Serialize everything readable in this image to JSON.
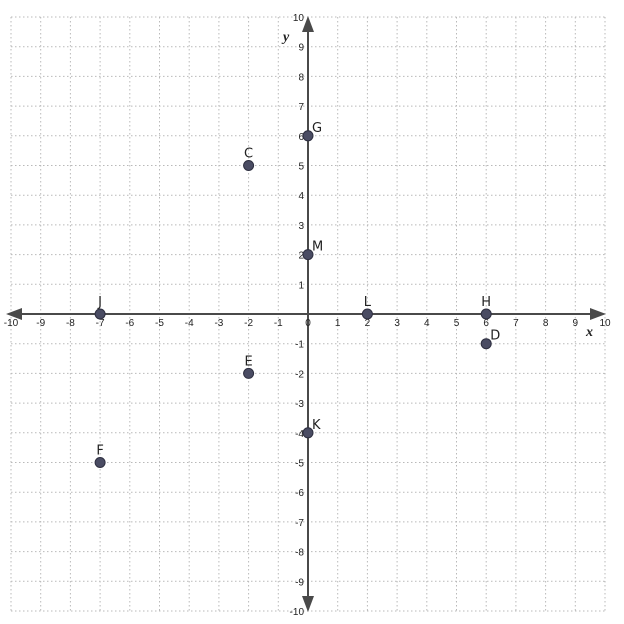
{
  "chart_data": {
    "type": "scatter",
    "title": "",
    "xlabel": "x",
    "ylabel": "y",
    "xlim": [
      -10,
      10
    ],
    "ylim": [
      -10,
      10
    ],
    "grid": true,
    "x_ticks": [
      -10,
      -9,
      -8,
      -7,
      -6,
      -5,
      -4,
      -3,
      -2,
      -1,
      0,
      1,
      2,
      3,
      4,
      5,
      6,
      7,
      8,
      9,
      10
    ],
    "y_ticks": [
      -10,
      -9,
      -8,
      -7,
      -6,
      -5,
      -4,
      -3,
      -2,
      -1,
      1,
      2,
      3,
      4,
      5,
      6,
      7,
      8,
      9,
      10
    ],
    "points": [
      {
        "label": "C",
        "x": -2,
        "y": 5
      },
      {
        "label": "D",
        "x": 6,
        "y": -1
      },
      {
        "label": "E",
        "x": -2,
        "y": -2
      },
      {
        "label": "F",
        "x": -7,
        "y": -5
      },
      {
        "label": "G",
        "x": 0,
        "y": 6
      },
      {
        "label": "H",
        "x": 6,
        "y": 0
      },
      {
        "label": "J",
        "x": -7,
        "y": 0
      },
      {
        "label": "K",
        "x": 0,
        "y": -4
      },
      {
        "label": "L",
        "x": 2,
        "y": 0
      },
      {
        "label": "M",
        "x": 0,
        "y": 2
      }
    ]
  }
}
